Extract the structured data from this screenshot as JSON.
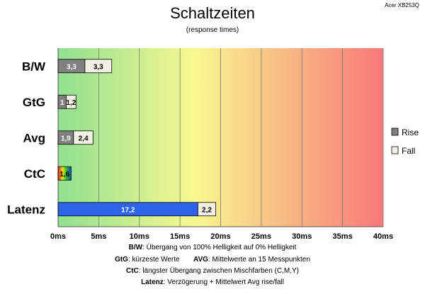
{
  "watermark": "Acer XB253Q",
  "chart_data": {
    "type": "bar",
    "orientation": "horizontal",
    "stacked": true,
    "title": "Schaltzeiten",
    "subtitle": "(response times)",
    "categories": [
      "B/W",
      "GtG",
      "Avg",
      "CtC",
      "Latenz"
    ],
    "series": [
      {
        "name": "Rise",
        "values": [
          3.3,
          1,
          1.9,
          1.6,
          17.2
        ],
        "labels": [
          "3,3",
          "1",
          "1,9",
          "1,6",
          "17,2"
        ]
      },
      {
        "name": "Fall",
        "values": [
          3.3,
          1.2,
          2.4,
          0,
          2.2
        ],
        "labels": [
          "3,3",
          "1,2",
          "2,4",
          "",
          "2,2"
        ]
      }
    ],
    "xlim": [
      0,
      40
    ],
    "xticks": [
      "0ms",
      "5ms",
      "10ms",
      "15ms",
      "20ms",
      "25ms",
      "30ms",
      "35ms",
      "40ms"
    ],
    "grid": true,
    "legend_position": "right",
    "background_gradient": [
      "#90e090",
      "#f8f890",
      "#f87878"
    ],
    "colors": {
      "rise": "#808080",
      "fall": "#f2f0e4",
      "latenz_rise": "#2e62e8"
    }
  },
  "notes": [
    {
      "key": "B/W",
      "text": ":  Übergang von 100% Helligkeit auf 0% Helligkeit"
    },
    {
      "key": "GtG",
      "text": ": kürzeste  Werte",
      "key2": "AVG",
      "text2": ": Mittelwerte  an 15 Messpunkten"
    },
    {
      "key": "CtC",
      "text": ": längster Übergang  zwischen Mischfarben  (C,M,Y)"
    },
    {
      "key": "Latenz",
      "text": ": Verzögerung  + Mittelwert Avg rise/fall"
    }
  ]
}
